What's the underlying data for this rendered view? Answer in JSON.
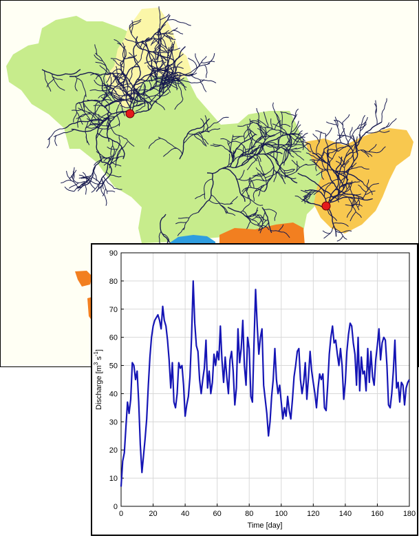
{
  "map": {
    "colors": {
      "background": "#fffff4",
      "main_basin": "#c7ec8c",
      "north_subbasin": "#fbf6a8",
      "east_subbasin": "#f8c84f",
      "south_subbasin_orange": "#f27f20",
      "south_subbasin_blue": "#2f9de0",
      "stream": "#16194f",
      "gauge": "#e41a1c"
    },
    "gauges": [
      "gauge-west",
      "gauge-east"
    ]
  },
  "chart_data": {
    "type": "line",
    "title": "",
    "xlabel": "Time [day]",
    "ylabel_main": "Discharge [m",
    "ylabel_sup1": "3",
    "ylabel_mid": " s",
    "ylabel_sup2": "-1",
    "ylabel_end": "]",
    "xlim": [
      0,
      180
    ],
    "ylim": [
      0,
      90
    ],
    "xticks": [
      0,
      20,
      40,
      60,
      80,
      100,
      120,
      140,
      160,
      180
    ],
    "yticks": [
      0,
      10,
      20,
      30,
      40,
      50,
      60,
      70,
      80,
      90
    ],
    "grid": true,
    "line_color": "#1515b5",
    "series": [
      {
        "x": [
          0,
          1,
          2,
          3,
          4,
          5,
          6,
          7,
          8,
          9,
          10,
          11,
          12,
          13,
          14,
          15,
          16,
          17,
          18,
          19,
          20,
          21,
          22,
          23,
          24,
          25,
          26,
          27,
          28,
          29,
          30,
          31,
          32,
          33,
          34,
          35,
          36,
          37,
          38,
          39,
          40,
          41,
          42,
          43,
          44,
          45,
          46,
          47,
          48,
          49,
          50,
          51,
          52,
          53,
          54,
          55,
          56,
          57,
          58,
          59,
          60,
          61,
          62,
          63,
          64,
          65,
          66,
          67,
          68,
          69,
          70,
          71,
          72,
          73,
          74,
          75,
          76,
          77,
          78,
          79,
          80,
          81,
          82,
          83,
          84,
          85,
          86,
          87,
          88,
          89,
          90,
          91,
          92,
          93,
          94,
          95,
          96,
          97,
          98,
          99,
          100,
          101,
          102,
          103,
          104,
          105,
          106,
          107,
          108,
          109,
          110,
          111,
          112,
          113,
          114,
          115,
          116,
          117,
          118,
          119,
          120,
          121,
          122,
          123,
          124,
          125,
          126,
          127,
          128,
          129,
          130,
          131,
          132,
          133,
          134,
          135,
          136,
          137,
          138,
          139,
          140,
          141,
          142,
          143,
          144,
          145,
          146,
          147,
          148,
          149,
          150,
          151,
          152,
          153,
          154,
          155,
          156,
          157,
          158,
          159,
          160,
          161,
          162,
          163,
          164,
          165,
          166,
          167,
          168,
          169,
          170,
          171,
          172,
          173,
          174,
          175,
          176,
          177,
          178,
          179,
          180
        ],
        "y": [
          7,
          16,
          19,
          28,
          37,
          33,
          38,
          51,
          50,
          45,
          48,
          37,
          22,
          12,
          18,
          24,
          31,
          43,
          53,
          60,
          64,
          66,
          67,
          68,
          66,
          63,
          71,
          66,
          64,
          59,
          52,
          42,
          51,
          37,
          35,
          40,
          51,
          49,
          50,
          43,
          32,
          36,
          39,
          46,
          60,
          80,
          65,
          57,
          55,
          45,
          40,
          45,
          49,
          59,
          42,
          48,
          40,
          44,
          54,
          50,
          55,
          52,
          64,
          52,
          44,
          53,
          46,
          40,
          52,
          55,
          48,
          36,
          42,
          63,
          51,
          56,
          66,
          50,
          43,
          60,
          56,
          39,
          37,
          58,
          77,
          64,
          54,
          60,
          63,
          43,
          38,
          33,
          25,
          30,
          39,
          45,
          56,
          45,
          40,
          43,
          37,
          31,
          35,
          32,
          39,
          34,
          31,
          38,
          46,
          50,
          55,
          56,
          45,
          40,
          44,
          51,
          38,
          46,
          55,
          48,
          44,
          40,
          35,
          42,
          47,
          45,
          47,
          35,
          34,
          43,
          54,
          60,
          64,
          58,
          59,
          54,
          50,
          56,
          50,
          38,
          44,
          55,
          61,
          65,
          64,
          58,
          54,
          43,
          60,
          41,
          53,
          47,
          48,
          41,
          56,
          44,
          55,
          46,
          43,
          52,
          57,
          63,
          52,
          58,
          60,
          59,
          50,
          36,
          35,
          40,
          48,
          59,
          42,
          44,
          37,
          44,
          43,
          36,
          42,
          44,
          45
        ]
      }
    ]
  }
}
